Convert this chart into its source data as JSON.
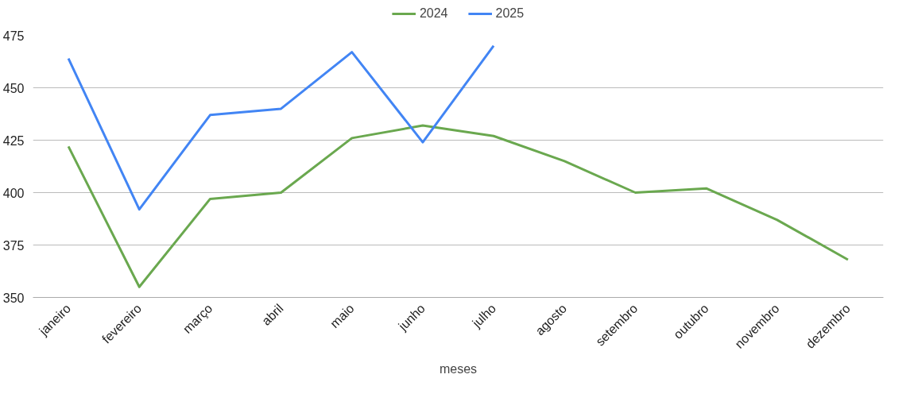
{
  "chart_data": {
    "type": "line",
    "xlabel": "meses",
    "categories": [
      "janeiro",
      "fevereiro",
      "março",
      "abril",
      "maio",
      "junho",
      "julho",
      "agosto",
      "setembro",
      "outubro",
      "novembro",
      "dezembro"
    ],
    "series": [
      {
        "name": "2024",
        "color": "#6aa84f",
        "values": [
          422,
          355,
          397,
          400,
          426,
          432,
          427,
          415,
          400,
          402,
          387,
          368
        ]
      },
      {
        "name": "2025",
        "color": "#4285f4",
        "values": [
          464,
          392,
          437,
          440,
          467,
          424,
          470,
          null,
          null,
          null,
          null,
          null
        ]
      }
    ],
    "ylim": [
      350,
      475
    ],
    "yticks": [
      350,
      375,
      400,
      425,
      450,
      475
    ],
    "grid": "y",
    "legend": "top",
    "marker": "none",
    "line_style": "solid"
  }
}
